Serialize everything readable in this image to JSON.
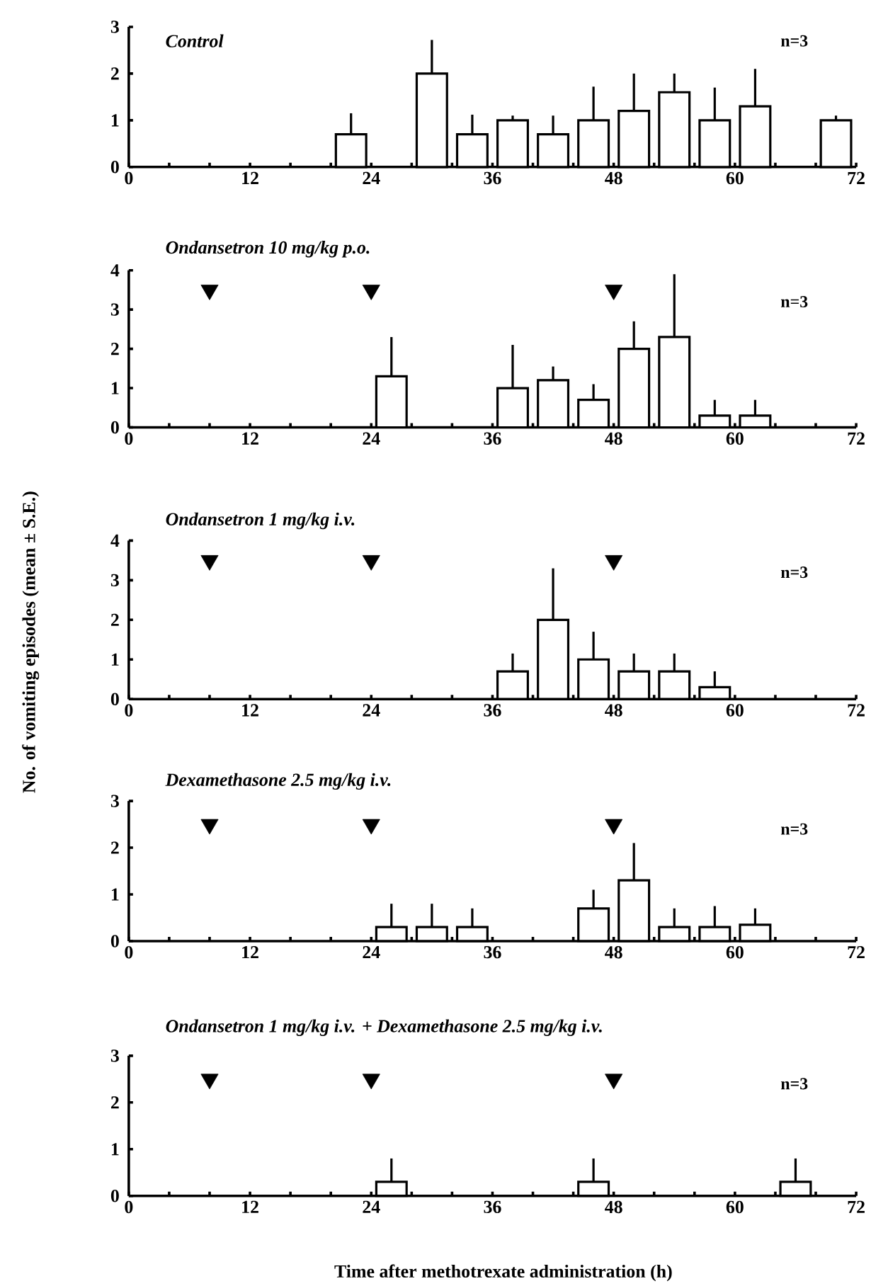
{
  "chart_data": [
    {
      "type": "bar",
      "title": "Control",
      "annotations": [
        "n=3"
      ],
      "xlim": [
        0,
        72
      ],
      "ylim": [
        0,
        3
      ],
      "yticks": [
        0,
        1,
        2,
        3
      ],
      "xticks": [
        0,
        {
          "value": 4,
          "label": null
        },
        {
          "value": 8,
          "label": null
        },
        12,
        {
          "value": 16,
          "label": null
        },
        {
          "value": 20,
          "label": null
        },
        24,
        {
          "value": 28,
          "label": null
        },
        {
          "value": 32,
          "label": null
        },
        36,
        {
          "value": 40,
          "label": null
        },
        {
          "value": 44,
          "label": null
        },
        48,
        {
          "value": 52,
          "label": null
        },
        {
          "value": 56,
          "label": null
        },
        60,
        {
          "value": 64,
          "label": null
        },
        {
          "value": 68,
          "label": null
        },
        72
      ],
      "series": [
        {
          "color": "#000000",
          "x": [
            22,
            30,
            34,
            38,
            42,
            46,
            50,
            54,
            58,
            62,
            70
          ],
          "values": [
            0.7,
            2.0,
            0.7,
            1.0,
            0.7,
            1.0,
            1.2,
            1.6,
            1.0,
            1.3,
            1.0
          ],
          "errors": [
            [
              0.7,
              1.15
            ],
            [
              2.0,
              2.72
            ],
            [
              0.7,
              1.12
            ],
            [
              1.0,
              1.1
            ],
            [
              0.7,
              1.1
            ],
            [
              1.0,
              1.72
            ],
            [
              1.2,
              2.0
            ],
            [
              1.6,
              2.0
            ],
            [
              1.0,
              1.7
            ],
            [
              1.3,
              2.1
            ],
            [
              1.0,
              1.1
            ]
          ]
        }
      ]
    },
    {
      "type": "bar",
      "title": "Ondansetron 10 mg/kg p.o.",
      "annotations": [
        "n=3"
      ],
      "xlim": [
        0,
        72
      ],
      "ylim": [
        0,
        4
      ],
      "yticks": [
        0,
        1,
        2,
        3,
        4
      ],
      "xticks": [
        0,
        {
          "value": 4,
          "label": null
        },
        {
          "value": 8,
          "label": null
        },
        12,
        {
          "value": 16,
          "label": null
        },
        {
          "value": 20,
          "label": null
        },
        24,
        {
          "value": 28,
          "label": null
        },
        {
          "value": 32,
          "label": null
        },
        36,
        {
          "value": 40,
          "label": null
        },
        {
          "value": 44,
          "label": null
        },
        48,
        {
          "value": 52,
          "label": null
        },
        {
          "value": 56,
          "label": null
        },
        60,
        {
          "value": 64,
          "label": null
        },
        {
          "value": 68,
          "label": null
        },
        72
      ],
      "series": [
        {
          "color": "#000000",
          "x": [
            26,
            38,
            42,
            46,
            50,
            54,
            58,
            62
          ],
          "values": [
            1.3,
            1.0,
            1.2,
            0.7,
            2.0,
            2.3,
            0.3,
            0.3
          ],
          "errors": [
            [
              1.3,
              2.3
            ],
            [
              1.0,
              2.1
            ],
            [
              1.2,
              1.55
            ],
            [
              0.7,
              1.1
            ],
            [
              2.0,
              2.7
            ],
            [
              2.3,
              3.9
            ],
            [
              0.3,
              0.7
            ],
            [
              0.3,
              0.7
            ]
          ]
        },
        {
          "type": "scatter",
          "marker": "triangle",
          "color": "#000000",
          "x": [
            8,
            24,
            48
          ],
          "values": [
            3.5,
            3.5,
            3.5
          ]
        }
      ]
    },
    {
      "type": "bar",
      "title": "Ondansetron 1 mg/kg i.v.",
      "ylabel": "No. of vomiting episodes (mean ± S.E.)",
      "annotations": [
        "n=3"
      ],
      "xlim": [
        0,
        72
      ],
      "ylim": [
        0,
        4
      ],
      "yticks": [
        0,
        1,
        2,
        3,
        4
      ],
      "xticks": [
        0,
        {
          "value": 4,
          "label": null
        },
        {
          "value": 8,
          "label": null
        },
        12,
        {
          "value": 16,
          "label": null
        },
        {
          "value": 20,
          "label": null
        },
        24,
        {
          "value": 28,
          "label": null
        },
        {
          "value": 32,
          "label": null
        },
        36,
        {
          "value": 40,
          "label": null
        },
        {
          "value": 44,
          "label": null
        },
        48,
        {
          "value": 52,
          "label": null
        },
        {
          "value": 56,
          "label": null
        },
        60,
        {
          "value": 64,
          "label": null
        },
        {
          "value": 68,
          "label": null
        },
        72
      ],
      "series": [
        {
          "color": "#000000",
          "x": [
            38,
            42,
            46,
            50,
            54,
            58
          ],
          "values": [
            0.7,
            2.0,
            1.0,
            0.7,
            0.7,
            0.3
          ],
          "errors": [
            [
              0.7,
              1.15
            ],
            [
              2.0,
              3.3
            ],
            [
              1.0,
              1.7
            ],
            [
              0.7,
              1.15
            ],
            [
              0.7,
              1.15
            ],
            [
              0.3,
              0.7
            ]
          ]
        },
        {
          "type": "scatter",
          "marker": "triangle",
          "color": "#000000",
          "x": [
            8,
            24,
            48
          ],
          "values": [
            3.5,
            3.5,
            3.5
          ]
        }
      ]
    },
    {
      "type": "bar",
      "title": "Dexamethasone 2.5 mg/kg i.v.",
      "annotations": [
        "n=3"
      ],
      "xlim": [
        0,
        72
      ],
      "ylim": [
        0,
        3
      ],
      "yticks": [
        0,
        1,
        2,
        3
      ],
      "xticks": [
        0,
        {
          "value": 4,
          "label": null
        },
        {
          "value": 8,
          "label": null
        },
        12,
        {
          "value": 16,
          "label": null
        },
        {
          "value": 20,
          "label": null
        },
        24,
        {
          "value": 28,
          "label": null
        },
        {
          "value": 32,
          "label": null
        },
        36,
        {
          "value": 40,
          "label": null
        },
        {
          "value": 44,
          "label": null
        },
        48,
        {
          "value": 52,
          "label": null
        },
        {
          "value": 56,
          "label": null
        },
        60,
        {
          "value": 64,
          "label": null
        },
        {
          "value": 68,
          "label": null
        },
        72
      ],
      "series": [
        {
          "color": "#000000",
          "x": [
            26,
            30,
            34,
            46,
            50,
            54,
            58,
            62
          ],
          "values": [
            0.3,
            0.3,
            0.3,
            0.7,
            1.3,
            0.3,
            0.3,
            0.35
          ],
          "errors": [
            [
              0.3,
              0.8
            ],
            [
              0.3,
              0.8
            ],
            [
              0.3,
              0.7
            ],
            [
              0.7,
              1.1
            ],
            [
              1.3,
              2.1
            ],
            [
              0.3,
              0.7
            ],
            [
              0.3,
              0.75
            ],
            [
              0.35,
              0.7
            ]
          ]
        },
        {
          "type": "scatter",
          "marker": "triangle",
          "color": "#000000",
          "x": [
            8,
            24,
            48
          ],
          "values": [
            2.5,
            2.5,
            2.5
          ]
        }
      ]
    },
    {
      "type": "bar",
      "title": "Ondansetron 1 mg/kg i.v. + Dexamethasone 2.5 mg/kg i.v.",
      "xlabel": "Time after methotrexate administration (h)",
      "annotations": [
        "n=3"
      ],
      "xlim": [
        0,
        72
      ],
      "ylim": [
        0,
        3
      ],
      "yticks": [
        0,
        1,
        2,
        3
      ],
      "xticks": [
        0,
        {
          "value": 4,
          "label": null
        },
        {
          "value": 8,
          "label": null
        },
        12,
        {
          "value": 16,
          "label": null
        },
        {
          "value": 20,
          "label": null
        },
        24,
        {
          "value": 28,
          "label": null
        },
        {
          "value": 32,
          "label": null
        },
        36,
        {
          "value": 40,
          "label": null
        },
        {
          "value": 44,
          "label": null
        },
        48,
        {
          "value": 52,
          "label": null
        },
        {
          "value": 56,
          "label": null
        },
        60,
        {
          "value": 64,
          "label": null
        },
        {
          "value": 68,
          "label": null
        },
        72
      ],
      "series": [
        {
          "color": "#000000",
          "x": [
            26,
            46,
            66
          ],
          "values": [
            0.3,
            0.3,
            0.3
          ],
          "errors": [
            [
              0.3,
              0.8
            ],
            [
              0.3,
              0.8
            ],
            [
              0.3,
              0.8
            ]
          ]
        },
        {
          "type": "scatter",
          "marker": "triangle",
          "color": "#000000",
          "x": [
            8,
            24,
            48
          ],
          "values": [
            2.5,
            2.5,
            2.5
          ]
        }
      ]
    }
  ]
}
